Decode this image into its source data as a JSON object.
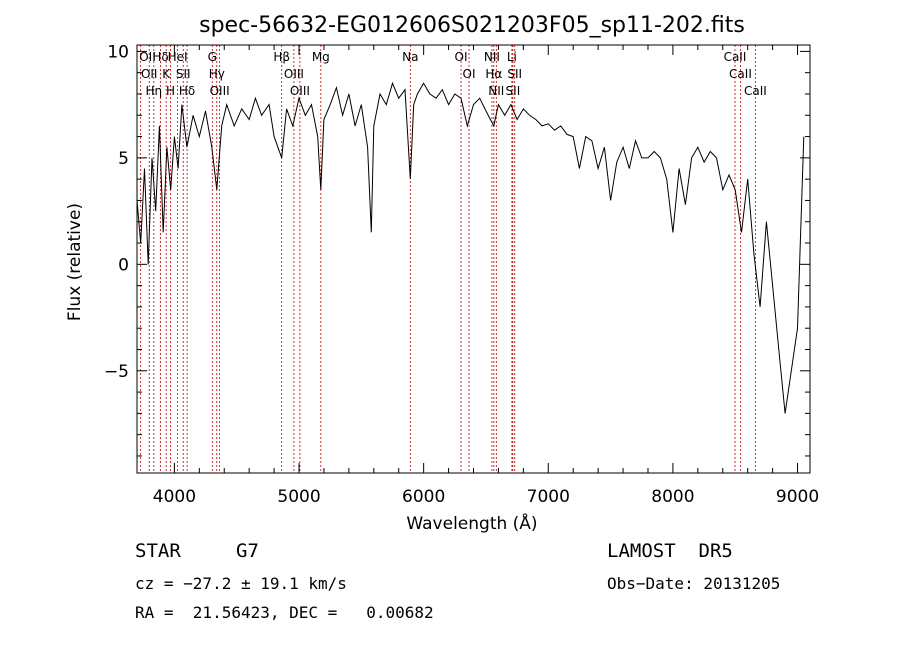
{
  "chart_data": {
    "type": "line",
    "title": "spec-56632-EG012606S021203F05_sp11-202.fits",
    "xlabel": "Wavelength (Å)",
    "ylabel": "Flux (relative)",
    "xlim": [
      3700,
      9100
    ],
    "ylim": [
      -9.8,
      10.3
    ],
    "xticks": [
      4000,
      5000,
      6000,
      7000,
      8000,
      9000
    ],
    "yticks": [
      -5,
      0,
      5,
      10
    ],
    "xtick_labels": [
      "4000",
      "5000",
      "6000",
      "7000",
      "8000",
      "9000"
    ],
    "ytick_labels": [
      "−5",
      "0",
      "5",
      "10"
    ],
    "grid": false,
    "line_color": "#000000",
    "marker_color": "#c00000",
    "series": [
      {
        "x": [
          3700,
          3730,
          3760,
          3790,
          3820,
          3850,
          3880,
          3910,
          3940,
          3970,
          4000,
          4030,
          4060,
          4100,
          4150,
          4200,
          4250,
          4300,
          4340,
          4380,
          4420,
          4480,
          4540,
          4600,
          4650,
          4700,
          4760,
          4800,
          4861,
          4900,
          4950,
          5000,
          5050,
          5100,
          5150,
          5175,
          5200,
          5250,
          5300,
          5350,
          5400,
          5450,
          5500,
          5550,
          5580,
          5600,
          5650,
          5700,
          5750,
          5800,
          5850,
          5893,
          5920,
          5950,
          6000,
          6050,
          6100,
          6150,
          6200,
          6250,
          6300,
          6350,
          6400,
          6450,
          6500,
          6563,
          6600,
          6650,
          6700,
          6750,
          6800,
          6850,
          6900,
          6950,
          7000,
          7050,
          7100,
          7150,
          7200,
          7250,
          7300,
          7350,
          7400,
          7450,
          7500,
          7550,
          7600,
          7650,
          7700,
          7750,
          7800,
          7850,
          7900,
          7950,
          8000,
          8050,
          8100,
          8150,
          8200,
          8250,
          8300,
          8350,
          8400,
          8450,
          8500,
          8550,
          8600,
          8650,
          8700,
          8750,
          8800,
          8850,
          8900,
          8950,
          9000,
          9050
        ],
        "y": [
          3.0,
          1.0,
          4.5,
          0.0,
          5.0,
          2.5,
          6.5,
          1.5,
          5.5,
          3.5,
          6.0,
          4.5,
          7.5,
          5.5,
          7.0,
          6.0,
          7.2,
          5.5,
          3.5,
          6.5,
          7.5,
          6.5,
          7.3,
          6.8,
          7.8,
          7.0,
          7.5,
          6.0,
          5.0,
          7.3,
          6.5,
          7.8,
          7.0,
          7.5,
          6.0,
          3.5,
          6.8,
          7.5,
          8.3,
          7.0,
          8.0,
          6.5,
          7.5,
          5.5,
          1.5,
          6.5,
          8.0,
          7.5,
          8.5,
          7.8,
          8.2,
          4.0,
          7.5,
          8.0,
          8.5,
          8.0,
          7.8,
          8.2,
          7.5,
          8.0,
          7.8,
          6.5,
          7.5,
          7.8,
          7.2,
          6.5,
          7.5,
          7.0,
          7.5,
          6.8,
          7.3,
          7.0,
          6.8,
          6.5,
          6.6,
          6.3,
          6.5,
          6.1,
          6.0,
          4.5,
          6.0,
          5.8,
          4.5,
          5.5,
          3.0,
          4.8,
          5.5,
          4.5,
          5.8,
          5.0,
          5.0,
          5.3,
          5.0,
          4.0,
          1.5,
          4.5,
          2.8,
          5.0,
          5.5,
          4.8,
          5.3,
          5.0,
          3.5,
          4.2,
          3.5,
          1.5,
          4.0,
          0.5,
          -2.0,
          2.0,
          -1.0,
          -4.0,
          -7.0,
          -5.0,
          -3.0,
          6.0
        ]
      }
    ],
    "lines": [
      {
        "wl": 3727,
        "label": "OII"
      },
      {
        "wl": 3798,
        "label": "OII"
      },
      {
        "wl": 3835,
        "label": "Hη"
      },
      {
        "wl": 3889,
        "label": "Hδ"
      },
      {
        "wl": 3934,
        "label": "K"
      },
      {
        "wl": 3969,
        "label": "H"
      },
      {
        "wl": 4026,
        "label": "HeI"
      },
      {
        "wl": 4071,
        "label": "SII"
      },
      {
        "wl": 4102,
        "label": "Hδ"
      },
      {
        "wl": 4304,
        "label": "G"
      },
      {
        "wl": 4340,
        "label": "Hγ"
      },
      {
        "wl": 4363,
        "label": "OIII"
      },
      {
        "wl": 4861,
        "label": "Hβ"
      },
      {
        "wl": 4959,
        "label": "OIII"
      },
      {
        "wl": 5007,
        "label": "OIII"
      },
      {
        "wl": 5175,
        "label": "Mg"
      },
      {
        "wl": 5893,
        "label": "Na"
      },
      {
        "wl": 6300,
        "label": "OI"
      },
      {
        "wl": 6364,
        "label": "OI"
      },
      {
        "wl": 6548,
        "label": "NII"
      },
      {
        "wl": 6563,
        "label": "Hα"
      },
      {
        "wl": 6583,
        "label": "NII"
      },
      {
        "wl": 6708,
        "label": "Li"
      },
      {
        "wl": 6716,
        "label": "SII"
      },
      {
        "wl": 6731,
        "label": "SII"
      },
      {
        "wl": 8498,
        "label": "CaII"
      },
      {
        "wl": 8542,
        "label": "CaII"
      },
      {
        "wl": 8662,
        "label": "CaII"
      }
    ]
  },
  "info": {
    "object_class": "STAR",
    "subclass": "G7",
    "survey": "LAMOST  DR5",
    "cz_line": "cz = −27.2 ± 19.1 km/s",
    "obs_date_line": "Obs−Date: 20131205",
    "coords_line": "RA =  21.56423, DEC =   0.00682"
  }
}
